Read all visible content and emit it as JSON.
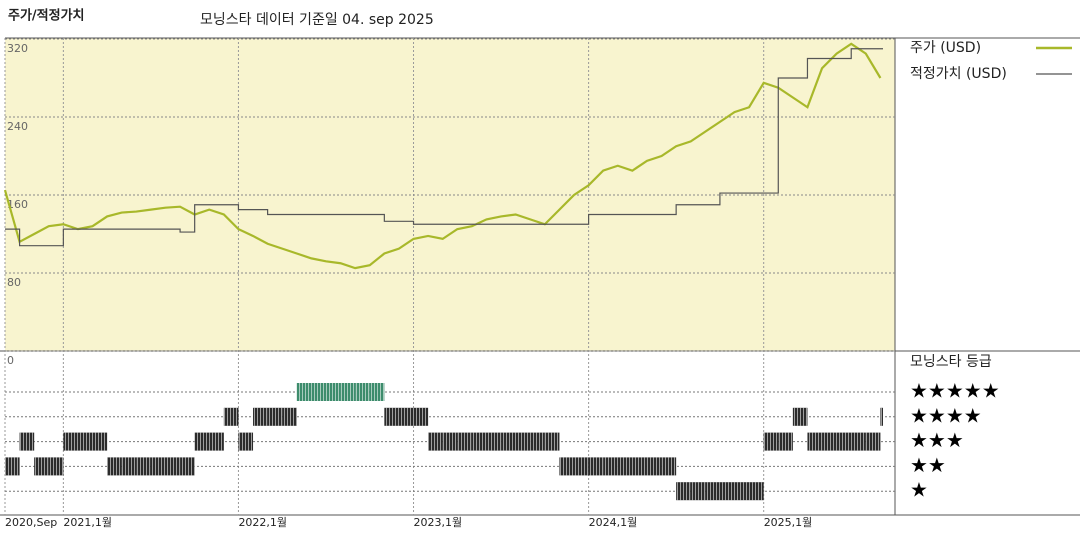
{
  "chart_data": [
    {
      "type": "line",
      "title": "주가/적정가치",
      "subtitle": "모닝스타 데이터 기준일 04. sep 2025",
      "x": [
        "2020-09",
        "2020-10",
        "2020-11",
        "2020-12",
        "2021-01",
        "2021-02",
        "2021-03",
        "2021-04",
        "2021-05",
        "2021-06",
        "2021-07",
        "2021-08",
        "2021-09",
        "2021-10",
        "2021-11",
        "2021-12",
        "2022-01",
        "2022-02",
        "2022-03",
        "2022-04",
        "2022-05",
        "2022-06",
        "2022-07",
        "2022-08",
        "2022-09",
        "2022-10",
        "2022-11",
        "2022-12",
        "2023-01",
        "2023-02",
        "2023-03",
        "2023-04",
        "2023-05",
        "2023-06",
        "2023-07",
        "2023-08",
        "2023-09",
        "2023-10",
        "2023-11",
        "2023-12",
        "2024-01",
        "2024-02",
        "2024-03",
        "2024-04",
        "2024-05",
        "2024-06",
        "2024-07",
        "2024-08",
        "2024-09",
        "2024-10",
        "2024-11",
        "2024-12",
        "2025-01",
        "2025-02",
        "2025-03",
        "2025-04",
        "2025-05",
        "2025-06",
        "2025-07",
        "2025-08",
        "2025-09"
      ],
      "xlim": [
        "2020-09",
        "2025-10"
      ],
      "xticks": [
        {
          "value": "2020-09",
          "label": "2020,Sep"
        },
        {
          "value": "2021-01",
          "label": "2021,1월"
        },
        {
          "value": "2022-01",
          "label": "2022,1월"
        },
        {
          "value": "2023-01",
          "label": "2023,1월"
        },
        {
          "value": "2024-01",
          "label": "2024,1월"
        },
        {
          "value": "2025-01",
          "label": "2025,1월"
        }
      ],
      "ylim": [
        0,
        320
      ],
      "yticks": [
        0,
        80,
        160,
        240,
        320
      ],
      "grid": true,
      "series": [
        {
          "name": "주가 (USD)",
          "color": "#a8b82a",
          "step": false,
          "values": [
            165,
            112,
            120,
            128,
            130,
            125,
            128,
            138,
            142,
            143,
            145,
            147,
            148,
            140,
            145,
            140,
            125,
            118,
            110,
            105,
            100,
            95,
            92,
            90,
            85,
            88,
            100,
            105,
            115,
            118,
            115,
            125,
            128,
            135,
            138,
            140,
            135,
            130,
            145,
            160,
            170,
            185,
            190,
            185,
            195,
            200,
            210,
            215,
            225,
            235,
            245,
            250,
            275,
            270,
            260,
            250,
            290,
            305,
            315,
            305,
            280
          ]
        },
        {
          "name": "적정가치 (USD)",
          "color": "#555555",
          "step": true,
          "values": [
            125,
            108,
            108,
            108,
            125,
            125,
            125,
            125,
            125,
            125,
            125,
            125,
            122,
            150,
            150,
            150,
            145,
            145,
            140,
            140,
            140,
            140,
            140,
            140,
            140,
            140,
            133,
            133,
            130,
            130,
            130,
            130,
            130,
            130,
            130,
            130,
            130,
            130,
            130,
            130,
            140,
            140,
            140,
            140,
            140,
            140,
            150,
            150,
            150,
            162,
            162,
            162,
            162,
            280,
            280,
            300,
            300,
            300,
            310,
            310,
            310
          ]
        }
      ]
    },
    {
      "type": "rating",
      "title": "모닝스타 등급",
      "x": [
        "2020-09",
        "2020-10",
        "2020-11",
        "2020-12",
        "2021-01",
        "2021-02",
        "2021-03",
        "2021-04",
        "2021-05",
        "2021-06",
        "2021-07",
        "2021-08",
        "2021-09",
        "2021-10",
        "2021-11",
        "2021-12",
        "2022-01",
        "2022-02",
        "2022-03",
        "2022-04",
        "2022-05",
        "2022-06",
        "2022-07",
        "2022-08",
        "2022-09",
        "2022-10",
        "2022-11",
        "2022-12",
        "2023-01",
        "2023-02",
        "2023-03",
        "2023-04",
        "2023-05",
        "2023-06",
        "2023-07",
        "2023-08",
        "2023-09",
        "2023-10",
        "2023-11",
        "2023-12",
        "2024-01",
        "2024-02",
        "2024-03",
        "2024-04",
        "2024-05",
        "2024-06",
        "2024-07",
        "2024-08",
        "2024-09",
        "2024-10",
        "2024-11",
        "2024-12",
        "2025-01",
        "2025-02",
        "2025-03",
        "2025-04",
        "2025-05",
        "2025-06",
        "2025-07",
        "2025-08",
        "2025-09"
      ],
      "values": [
        2,
        3,
        2,
        2,
        3,
        3,
        3,
        2,
        2,
        2,
        2,
        2,
        2,
        3,
        3,
        4,
        3,
        4,
        4,
        4,
        5,
        5,
        5,
        5,
        5,
        5,
        4,
        4,
        4,
        3,
        3,
        3,
        3,
        3,
        3,
        3,
        3,
        3,
        2,
        2,
        2,
        2,
        2,
        2,
        2,
        2,
        1,
        1,
        1,
        1,
        1,
        1,
        3,
        3,
        4,
        3,
        3,
        3,
        3,
        3,
        4
      ],
      "levels": [
        {
          "value": 5,
          "label": "★★★★★",
          "color": "#3d8c6c"
        },
        {
          "value": 4,
          "label": "★★★★",
          "color": "#2b2b2b"
        },
        {
          "value": 3,
          "label": "★★★",
          "color": "#2b2b2b"
        },
        {
          "value": 2,
          "label": "★★",
          "color": "#2b2b2b"
        },
        {
          "value": 1,
          "label": "★",
          "color": "#2b2b2b"
        }
      ]
    }
  ]
}
